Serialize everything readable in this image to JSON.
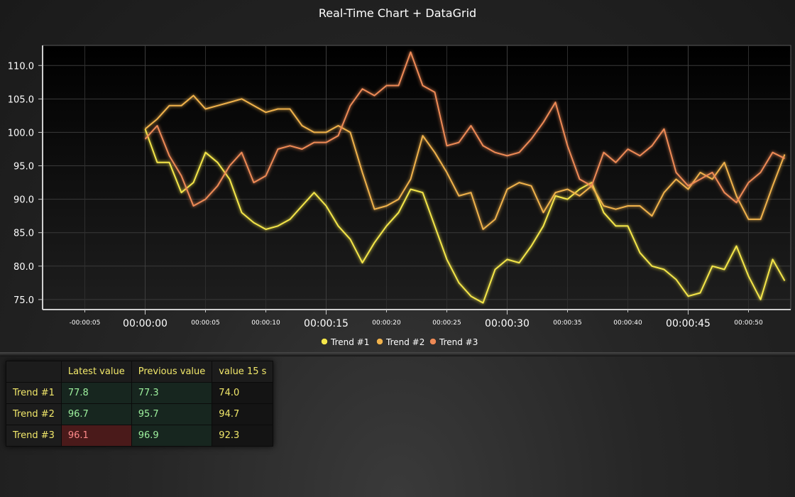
{
  "colors": {
    "trend1": "#f4e64a",
    "trend2": "#f0b24c",
    "trend3": "#ee8a56",
    "background": "#1f1f1f"
  },
  "chart_data": {
    "type": "line",
    "title": "Real-Time Chart + DataGrid",
    "x_unit": "seconds",
    "xlim": [
      -8.5,
      53.5
    ],
    "ylim": [
      73.5,
      113
    ],
    "y_ticks": [
      "75.0",
      "80.0",
      "85.0",
      "90.0",
      "95.0",
      "100.0",
      "105.0",
      "110.0"
    ],
    "x_ticks_major": [
      "00:00:00",
      "00:00:15",
      "00:00:30",
      "00:00:45"
    ],
    "x_ticks_minor": [
      "-00:00:05",
      "00:00:05",
      "00:00:10",
      "00:00:20",
      "00:00:25",
      "00:00:35",
      "00:00:40",
      "00:00:50"
    ],
    "grid": true,
    "legend_position": "bottom",
    "series": [
      {
        "name": "Trend #1",
        "color": "#f4e64a",
        "x": [
          0,
          1,
          2,
          3,
          4,
          5,
          6,
          7,
          8,
          9,
          10,
          11,
          12,
          13,
          14,
          15,
          16,
          17,
          18,
          19,
          20,
          21,
          22,
          23,
          24,
          25,
          26,
          27,
          28,
          29,
          30,
          31,
          32,
          33,
          34,
          35,
          36,
          37,
          38,
          39,
          40,
          41,
          42,
          43,
          44,
          45,
          46,
          47,
          48,
          49,
          50,
          51,
          52,
          53
        ],
        "y": [
          100.5,
          95.5,
          95.5,
          91,
          92.5,
          97,
          95.5,
          93,
          88,
          86.5,
          85.5,
          86,
          87,
          89,
          91,
          89,
          86,
          84,
          80.5,
          83.5,
          86,
          88,
          91.5,
          91,
          86,
          81,
          77.5,
          75.5,
          74.5,
          79.5,
          81,
          80.5,
          83,
          86,
          90.5,
          90,
          91.5,
          92.5,
          88,
          86,
          86,
          82,
          80,
          79.5,
          78,
          75.5,
          76,
          80,
          79.5,
          83,
          78.5,
          75,
          81,
          77.8
        ]
      },
      {
        "name": "Trend #2",
        "color": "#f0b24c",
        "x": [
          0,
          1,
          2,
          3,
          4,
          5,
          6,
          7,
          8,
          9,
          10,
          11,
          12,
          13,
          14,
          15,
          16,
          17,
          18,
          19,
          20,
          21,
          22,
          23,
          24,
          25,
          26,
          27,
          28,
          29,
          30,
          31,
          32,
          33,
          34,
          35,
          36,
          37,
          38,
          39,
          40,
          41,
          42,
          43,
          44,
          45,
          46,
          47,
          48,
          49,
          50,
          51,
          52,
          53
        ],
        "y": [
          100.5,
          102,
          104,
          104,
          105.5,
          103.5,
          104,
          104.5,
          105,
          104,
          103,
          103.5,
          103.5,
          101,
          100,
          100,
          101,
          100,
          94,
          88.5,
          89,
          90,
          93,
          99.5,
          97,
          94,
          90.5,
          91,
          85.5,
          87,
          91.5,
          92.5,
          92,
          88,
          91,
          91.5,
          90.5,
          92,
          89,
          88.5,
          89,
          89,
          87.5,
          91,
          93,
          91.5,
          94,
          93,
          95.5,
          90.5,
          87,
          87,
          92,
          96.7
        ]
      },
      {
        "name": "Trend #3",
        "color": "#ee8a56",
        "x": [
          0,
          1,
          2,
          3,
          4,
          5,
          6,
          7,
          8,
          9,
          10,
          11,
          12,
          13,
          14,
          15,
          16,
          17,
          18,
          19,
          20,
          21,
          22,
          23,
          24,
          25,
          26,
          27,
          28,
          29,
          30,
          31,
          32,
          33,
          34,
          35,
          36,
          37,
          38,
          39,
          40,
          41,
          42,
          43,
          44,
          45,
          46,
          47,
          48,
          49,
          50,
          51,
          52,
          53
        ],
        "y": [
          99,
          101,
          96.5,
          93.5,
          89,
          90,
          92,
          95,
          97,
          92.5,
          93.5,
          97.5,
          98,
          97.5,
          98.5,
          98.5,
          99.5,
          104,
          106.5,
          105.5,
          107,
          107,
          112,
          107,
          106,
          98,
          98.5,
          101,
          98,
          97,
          96.5,
          97,
          99,
          101.5,
          104.5,
          98,
          93,
          92,
          97,
          95.5,
          97.5,
          96.5,
          98,
          100.5,
          94,
          92,
          93,
          94,
          91,
          89.5,
          92.5,
          94,
          97,
          96.1
        ]
      }
    ]
  },
  "grid": {
    "columns": [
      "",
      "Latest value",
      "Previous value",
      "value 15 s"
    ],
    "rows": [
      {
        "label": "Trend #1",
        "latest": "77.8",
        "previous": "77.3",
        "value15": "74.0",
        "latest_state": "up"
      },
      {
        "label": "Trend #2",
        "latest": "96.7",
        "previous": "95.7",
        "value15": "94.7",
        "latest_state": "up"
      },
      {
        "label": "Trend #3",
        "latest": "96.1",
        "previous": "96.9",
        "value15": "92.3",
        "latest_state": "down"
      }
    ]
  }
}
